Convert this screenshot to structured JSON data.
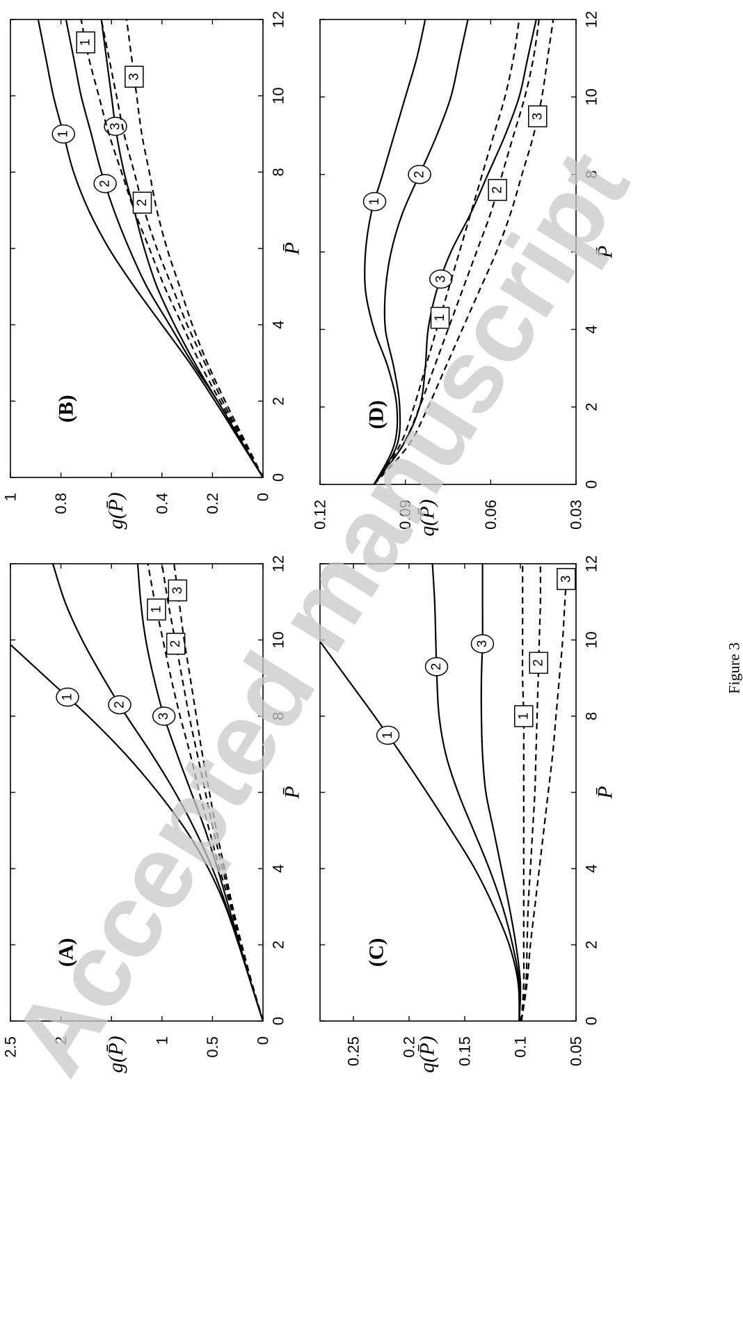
{
  "figure_caption": "Figure 3",
  "watermark": "Accepted manuscript",
  "chart_data": [
    {
      "id": "A",
      "type": "line",
      "title": "(A)",
      "xlabel": "P̄",
      "ylabel": "g(P̄)",
      "xlim": [
        0,
        12
      ],
      "ylim": [
        0,
        2.5
      ],
      "xticks": [
        0,
        2,
        4,
        6,
        8,
        10,
        12
      ],
      "yticks": [
        0,
        0.5,
        1,
        1.5,
        2,
        2.5
      ],
      "xtick_labels": [
        "0",
        "2",
        "4",
        "",
        "8",
        "10",
        "12"
      ],
      "ytick_labels": [
        "0",
        "0.5",
        "1",
        "",
        "2",
        "2.5"
      ],
      "x": [
        0,
        1,
        2,
        3,
        4,
        5,
        6,
        7,
        8,
        9,
        10,
        11,
        12
      ],
      "series": [
        {
          "name": "1",
          "style": "solid",
          "label_x": 8.5,
          "values": [
            0,
            0.12,
            0.24,
            0.37,
            0.54,
            0.76,
            1.04,
            1.36,
            1.73,
            2.14,
            null,
            null,
            null
          ]
        },
        {
          "name": "2",
          "style": "solid",
          "label_x": 8.3,
          "values": [
            0,
            0.12,
            0.24,
            0.36,
            0.5,
            0.67,
            0.87,
            1.1,
            1.35,
            1.58,
            1.79,
            1.96,
            2.08
          ]
        },
        {
          "name": "3",
          "style": "solid",
          "label_x": 8.0,
          "values": [
            0,
            0.12,
            0.23,
            0.34,
            0.45,
            0.57,
            0.71,
            0.85,
            0.98,
            1.08,
            1.16,
            1.21,
            1.24
          ]
        },
        {
          "name": "1",
          "style": "dashed",
          "label_x": 10.8,
          "values": [
            0,
            0.11,
            0.22,
            0.32,
            0.43,
            0.53,
            0.63,
            0.72,
            0.82,
            0.91,
            0.99,
            1.07,
            1.14
          ]
        },
        {
          "name": "2",
          "style": "dashed",
          "label_x": 9.9,
          "values": [
            0,
            0.11,
            0.21,
            0.31,
            0.4,
            0.49,
            0.57,
            0.65,
            0.73,
            0.8,
            0.87,
            0.94,
            1.0
          ]
        },
        {
          "name": "3",
          "style": "dashed",
          "label_x": 11.3,
          "values": [
            0,
            0.11,
            0.21,
            0.3,
            0.38,
            0.46,
            0.53,
            0.6,
            0.66,
            0.72,
            0.78,
            0.83,
            0.88
          ]
        }
      ]
    },
    {
      "id": "B",
      "type": "line",
      "title": "(B)",
      "xlabel": "P̄",
      "ylabel": "g(P̄)",
      "xlim": [
        0,
        12
      ],
      "ylim": [
        0,
        1
      ],
      "xticks": [
        0,
        2,
        4,
        6,
        8,
        10,
        12
      ],
      "yticks": [
        0,
        0.2,
        0.4,
        0.6,
        0.8,
        1
      ],
      "xtick_labels": [
        "0",
        "2",
        "4",
        "",
        "8",
        "10",
        "12"
      ],
      "ytick_labels": [
        "0",
        "0.2",
        "0.4",
        "",
        "0.8",
        "1"
      ],
      "x": [
        0,
        1,
        2,
        3,
        4,
        5,
        6,
        7,
        8,
        9,
        10,
        11,
        12
      ],
      "series": [
        {
          "name": "1",
          "style": "solid",
          "label_x": 9.0,
          "values": [
            0,
            0.095,
            0.19,
            0.29,
            0.4,
            0.51,
            0.61,
            0.69,
            0.75,
            0.79,
            0.83,
            0.86,
            0.89
          ]
        },
        {
          "name": "2",
          "style": "solid",
          "label_x": 7.7,
          "values": [
            0,
            0.09,
            0.18,
            0.28,
            0.37,
            0.46,
            0.53,
            0.59,
            0.64,
            0.68,
            0.72,
            0.75,
            0.78
          ]
        },
        {
          "name": "3",
          "style": "solid",
          "label_x": 9.2,
          "values": [
            0,
            0.09,
            0.18,
            0.27,
            0.35,
            0.42,
            0.47,
            0.51,
            0.55,
            0.58,
            0.6,
            0.62,
            0.64
          ]
        },
        {
          "name": "1",
          "style": "dashed",
          "label_x": 11.4,
          "values": [
            0,
            0.085,
            0.17,
            0.25,
            0.32,
            0.39,
            0.45,
            0.51,
            0.56,
            0.61,
            0.65,
            0.69,
            0.72
          ]
        },
        {
          "name": "2",
          "style": "dashed",
          "label_x": 7.2,
          "values": [
            0,
            0.08,
            0.16,
            0.23,
            0.3,
            0.36,
            0.42,
            0.47,
            0.51,
            0.55,
            0.58,
            0.61,
            0.64
          ]
        },
        {
          "name": "3",
          "style": "dashed",
          "label_x": 10.5,
          "values": [
            0,
            0.075,
            0.15,
            0.22,
            0.28,
            0.33,
            0.38,
            0.42,
            0.45,
            0.48,
            0.5,
            0.52,
            0.54
          ]
        }
      ]
    },
    {
      "id": "C",
      "type": "line",
      "title": "(C)",
      "xlabel": "P̄",
      "ylabel": "q(P̄)",
      "xlim": [
        0,
        12
      ],
      "ylim": [
        0.05,
        0.28
      ],
      "xticks": [
        0,
        2,
        4,
        6,
        8,
        10,
        12
      ],
      "yticks": [
        0.05,
        0.1,
        0.15,
        0.2,
        0.25
      ],
      "xtick_labels": [
        "0",
        "2",
        "4",
        "",
        "8",
        "10",
        "12"
      ],
      "ytick_labels": [
        "0.05",
        "0.1",
        "0.15",
        "0.2",
        "0.25"
      ],
      "x": [
        0,
        1,
        2,
        3,
        4,
        5,
        6,
        7,
        8,
        9,
        10,
        11,
        12
      ],
      "series": [
        {
          "name": "1",
          "style": "solid",
          "label_x": 7.5,
          "values": [
            0.101,
            0.102,
            0.11,
            0.124,
            0.141,
            0.162,
            0.184,
            0.207,
            0.231,
            0.256,
            null,
            null,
            null
          ]
        },
        {
          "name": "2",
          "style": "solid",
          "label_x": 9.3,
          "values": [
            0.101,
            0.101,
            0.107,
            0.116,
            0.128,
            0.142,
            0.156,
            0.167,
            0.173,
            0.175,
            0.176,
            0.177,
            0.179
          ]
        },
        {
          "name": "3",
          "style": "solid",
          "label_x": 9.9,
          "values": [
            0.101,
            0.1,
            0.104,
            0.11,
            0.117,
            0.124,
            0.131,
            0.134,
            0.135,
            0.135,
            0.134,
            0.134,
            0.134
          ]
        },
        {
          "name": "1",
          "style": "dashed",
          "label_x": 8.0,
          "values": [
            0.099,
            0.097,
            0.097,
            0.097,
            0.097,
            0.097,
            0.097,
            0.097,
            0.097,
            0.098,
            0.098,
            0.098,
            0.098
          ]
        },
        {
          "name": "2",
          "style": "dashed",
          "label_x": 9.4,
          "values": [
            0.099,
            0.095,
            0.094,
            0.093,
            0.091,
            0.089,
            0.087,
            0.086,
            0.085,
            0.084,
            0.083,
            0.082,
            0.082
          ]
        },
        {
          "name": "3",
          "style": "dashed",
          "label_x": 11.6,
          "values": [
            0.099,
            0.094,
            0.091,
            0.087,
            0.083,
            0.079,
            0.075,
            0.071,
            0.068,
            0.065,
            0.062,
            0.06,
            0.058
          ]
        }
      ]
    },
    {
      "id": "D",
      "type": "line",
      "title": "(D)",
      "xlabel": "P̄",
      "ylabel": "q(P̄)",
      "xlim": [
        0,
        12
      ],
      "ylim": [
        0.03,
        0.12
      ],
      "xticks": [
        0,
        2,
        4,
        6,
        8,
        10,
        12
      ],
      "yticks": [
        0.03,
        0.06,
        0.09,
        0.12
      ],
      "xtick_labels": [
        "0",
        "2",
        "4",
        "",
        "8",
        "10",
        "12"
      ],
      "ytick_labels": [
        "0.03",
        "0.06",
        "0.09",
        "0.12"
      ],
      "x": [
        0,
        1,
        2,
        3,
        4,
        5,
        6,
        7,
        8,
        9,
        10,
        11,
        12
      ],
      "series": [
        {
          "name": "1",
          "style": "solid",
          "label_x": 7.3,
          "values": [
            0.101,
            0.094,
            0.093,
            0.096,
            0.101,
            0.104,
            0.104,
            0.102,
            0.098,
            0.094,
            0.09,
            0.086,
            0.083
          ]
        },
        {
          "name": "2",
          "style": "solid",
          "label_x": 8.0,
          "values": [
            0.101,
            0.093,
            0.092,
            0.094,
            0.097,
            0.097,
            0.095,
            0.091,
            0.085,
            0.079,
            0.074,
            0.071,
            0.068
          ]
        },
        {
          "name": "3",
          "style": "solid",
          "label_x": 5.3,
          "values": [
            0.101,
            0.091,
            0.085,
            0.083,
            0.082,
            0.079,
            0.074,
            0.067,
            0.061,
            0.055,
            0.05,
            0.047,
            0.044
          ]
        },
        {
          "name": "1",
          "style": "dashed",
          "label_x": 4.3,
          "values": [
            0.101,
            0.092,
            0.087,
            0.083,
            0.079,
            0.075,
            0.071,
            0.067,
            0.063,
            0.059,
            0.055,
            0.052,
            0.05
          ]
        },
        {
          "name": "2",
          "style": "dashed",
          "label_x": 7.6,
          "values": [
            0.101,
            0.091,
            0.085,
            0.08,
            0.075,
            0.07,
            0.065,
            0.06,
            0.056,
            0.052,
            0.048,
            0.045,
            0.043
          ]
        },
        {
          "name": "3",
          "style": "dashed",
          "label_x": 9.5,
          "values": [
            0.101,
            0.089,
            0.082,
            0.076,
            0.07,
            0.064,
            0.058,
            0.053,
            0.049,
            0.045,
            0.042,
            0.04,
            0.038
          ]
        }
      ]
    }
  ]
}
